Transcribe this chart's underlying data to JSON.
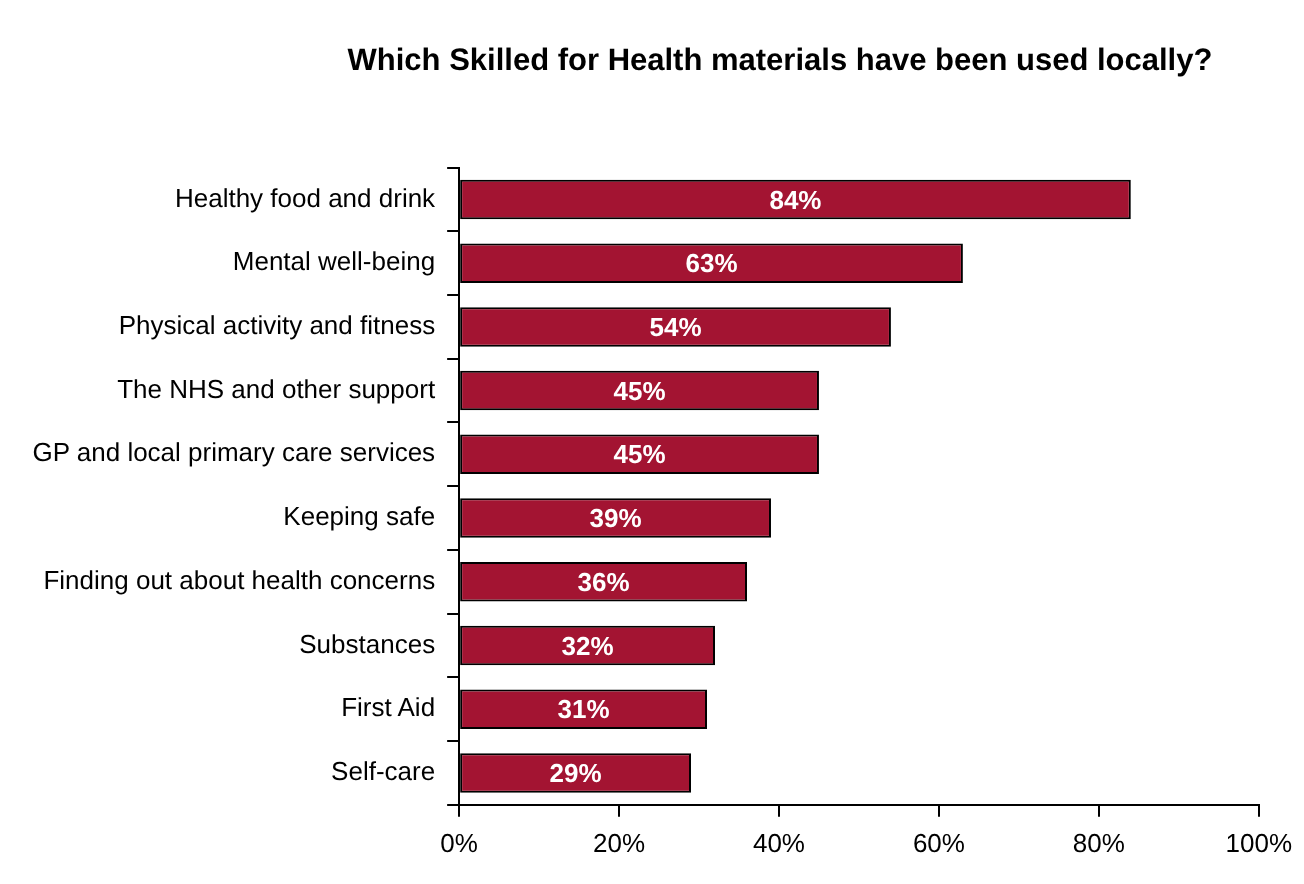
{
  "chart_data": {
    "type": "bar",
    "orientation": "horizontal",
    "title": "Which Skilled for Health materials have been used locally?",
    "categories": [
      "Healthy food and drink",
      "Mental well-being",
      "Physical activity and fitness",
      "The NHS and other support",
      "GP and local primary care services",
      "Keeping safe",
      "Finding out about health concerns",
      "Substances",
      "First Aid",
      "Self-care"
    ],
    "values": [
      84,
      63,
      54,
      45,
      45,
      39,
      36,
      32,
      31,
      29
    ],
    "value_labels": [
      "84%",
      "63%",
      "54%",
      "45%",
      "45%",
      "39%",
      "36%",
      "32%",
      "31%",
      "29%"
    ],
    "color": "#a31432",
    "xlim": [
      0,
      100
    ],
    "xticks": [
      {
        "value": 0,
        "label": "0%"
      },
      {
        "value": 20,
        "label": "20%"
      },
      {
        "value": 40,
        "label": "40%"
      },
      {
        "value": 60,
        "label": "60%"
      },
      {
        "value": 80,
        "label": "80%"
      },
      {
        "value": 100,
        "label": "100%"
      }
    ],
    "grid": false,
    "legend": false
  }
}
